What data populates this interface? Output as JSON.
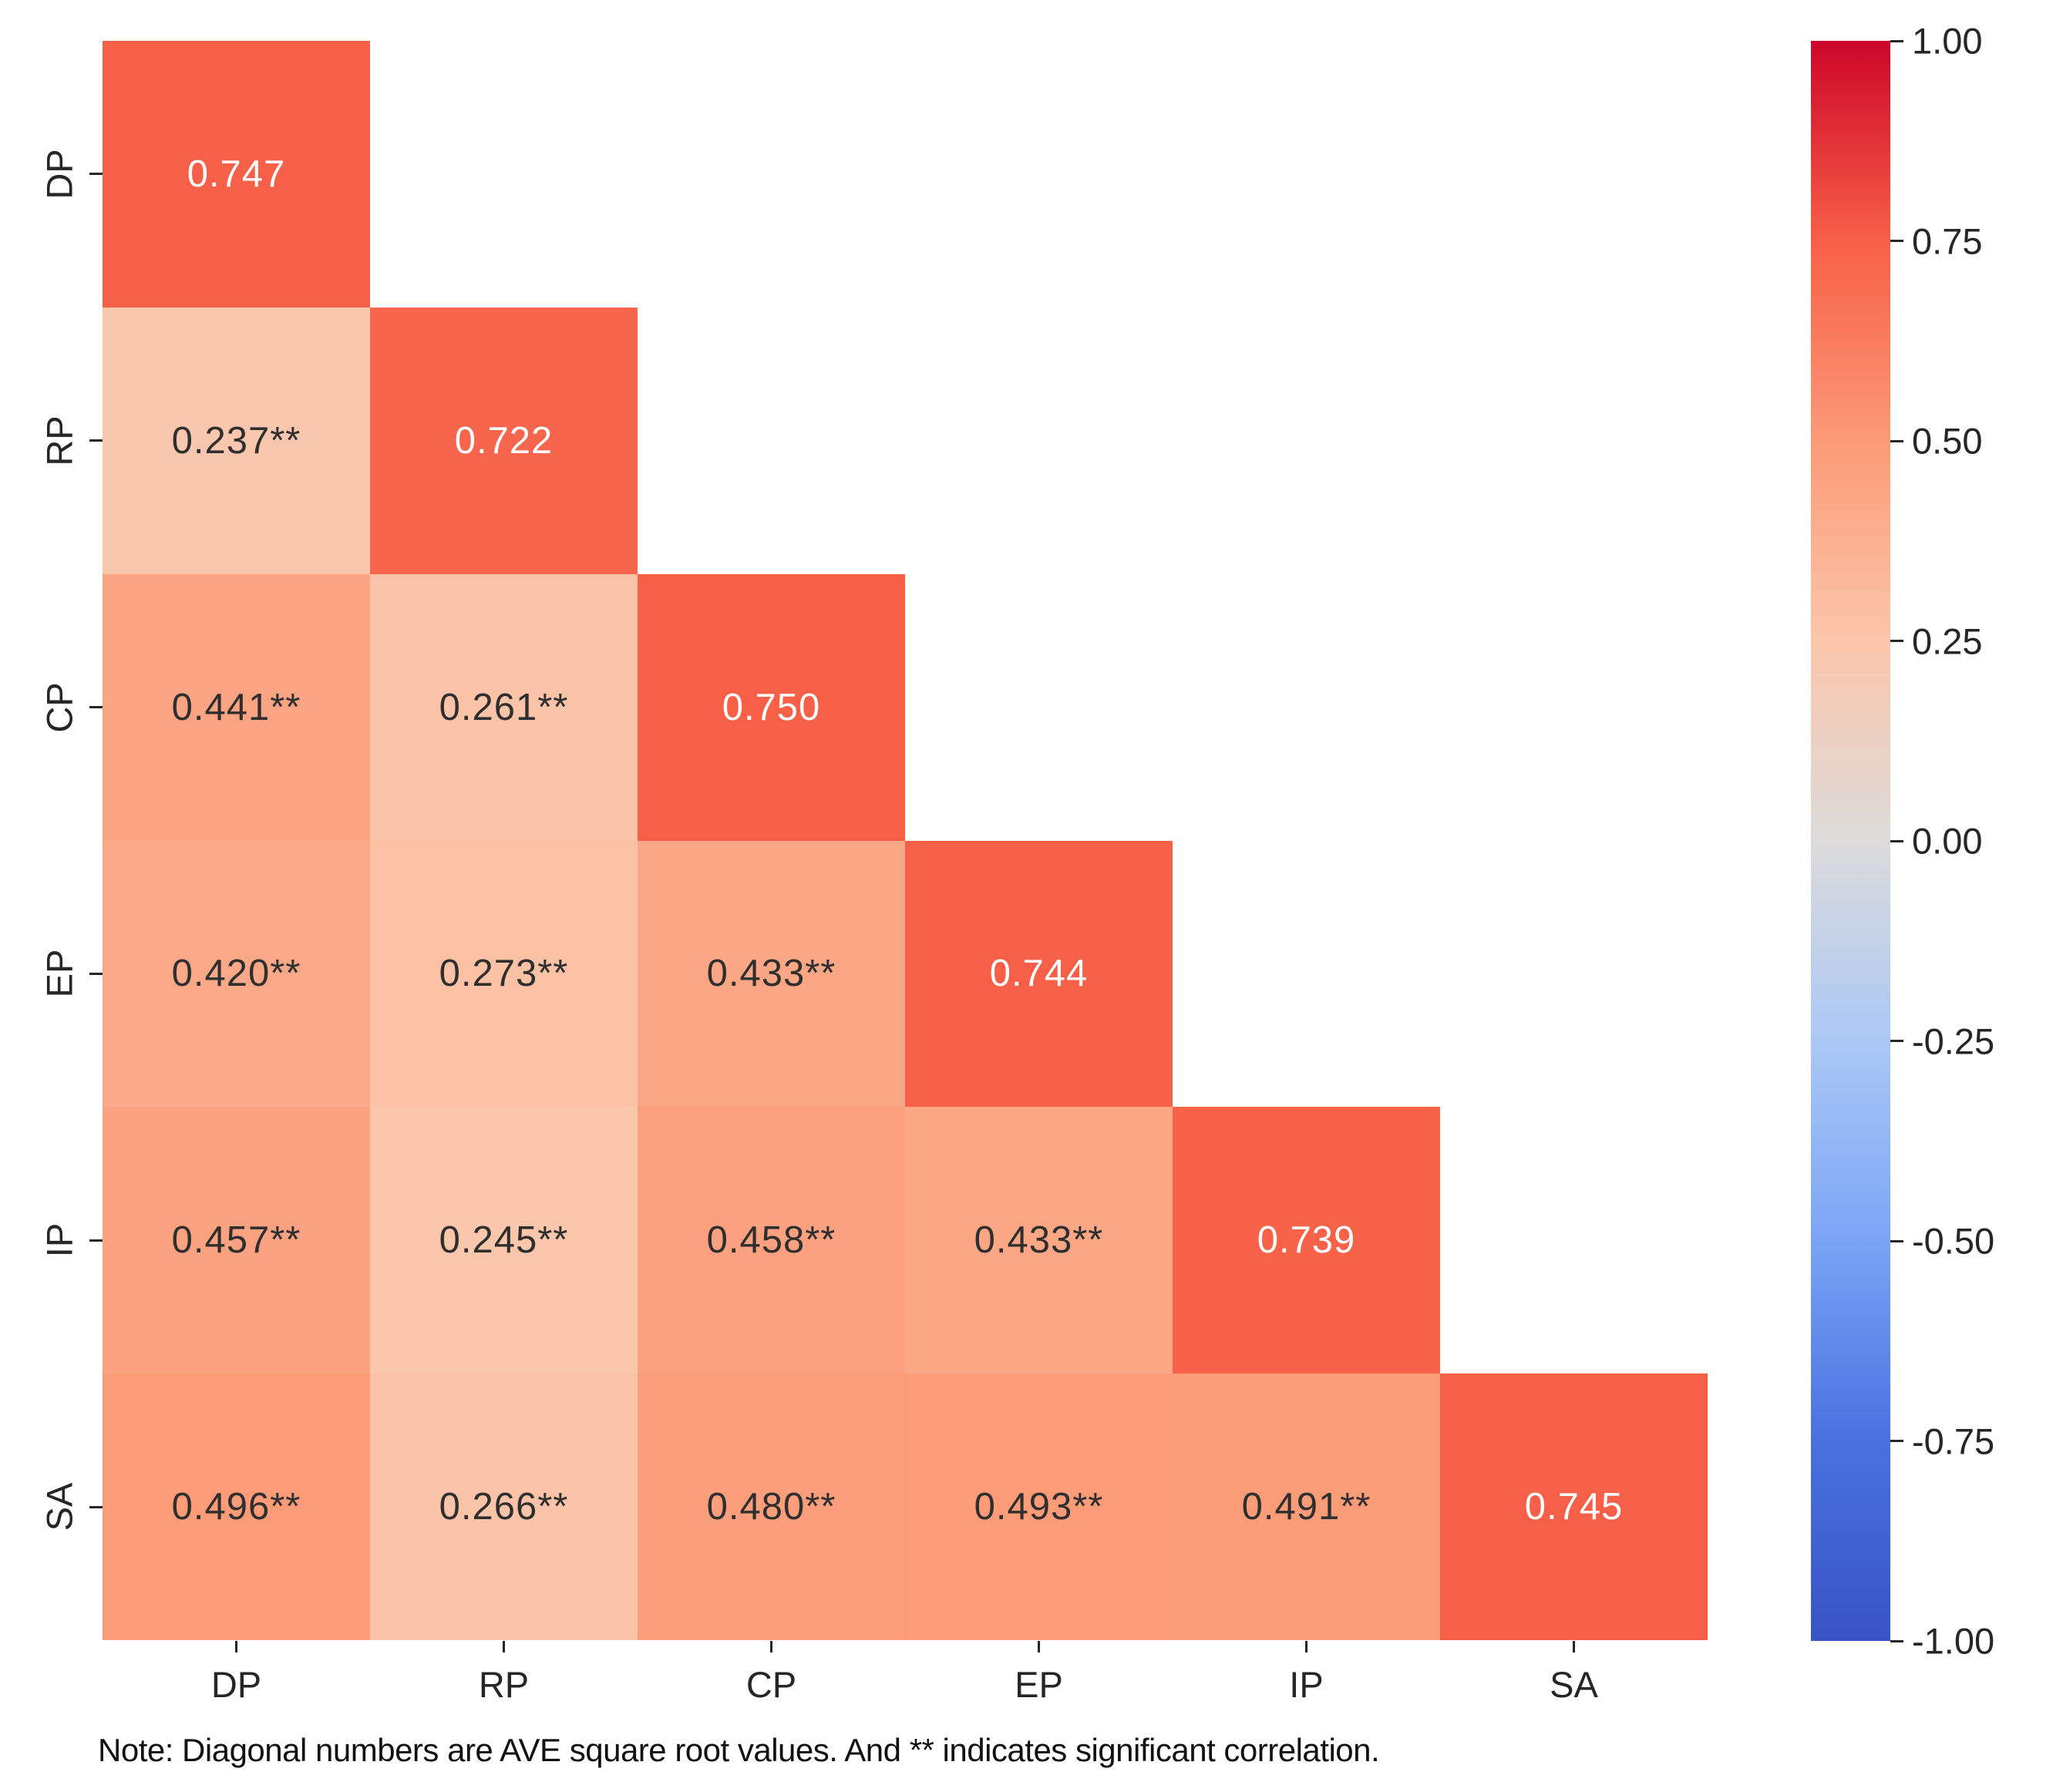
{
  "chart_data": {
    "type": "heatmap",
    "title": "",
    "x_categories": [
      "DP",
      "RP",
      "CP",
      "EP",
      "IP",
      "SA"
    ],
    "y_categories": [
      "DP",
      "RP",
      "CP",
      "EP",
      "IP",
      "SA"
    ],
    "rows": [
      {
        "name": "DP",
        "values": [
          0.747
        ]
      },
      {
        "name": "RP",
        "values": [
          0.237,
          0.722
        ]
      },
      {
        "name": "CP",
        "values": [
          0.441,
          0.261,
          0.75
        ]
      },
      {
        "name": "EP",
        "values": [
          0.42,
          0.273,
          0.433,
          0.744
        ]
      },
      {
        "name": "IP",
        "values": [
          0.457,
          0.245,
          0.458,
          0.433,
          0.739
        ]
      },
      {
        "name": "SA",
        "values": [
          0.496,
          0.266,
          0.48,
          0.493,
          0.491,
          0.745
        ]
      }
    ],
    "labels": [
      [
        "0.747"
      ],
      [
        "0.237**",
        "0.722"
      ],
      [
        "0.441**",
        "0.261**",
        "0.750"
      ],
      [
        "0.420**",
        "0.273**",
        "0.433**",
        "0.744"
      ],
      [
        "0.457**",
        "0.245**",
        "0.458**",
        "0.433**",
        "0.739"
      ],
      [
        "0.496**",
        "0.266**",
        "0.480**",
        "0.493**",
        "0.491**",
        "0.745"
      ]
    ],
    "shape": "lower-triangle",
    "value_range": [
      -1,
      1
    ],
    "grid": false,
    "colormap": {
      "name": "coolwarm",
      "stops": [
        {
          "v": -1.0,
          "color": "#3853c6"
        },
        {
          "v": -0.75,
          "color": "#4a70e0"
        },
        {
          "v": -0.5,
          "color": "#7ba4f5"
        },
        {
          "v": -0.25,
          "color": "#abc8f5"
        },
        {
          "v": 0.0,
          "color": "#dcdbda"
        },
        {
          "v": 0.25,
          "color": "#fbc6ab"
        },
        {
          "v": 0.5,
          "color": "#fb9a77"
        },
        {
          "v": 0.75,
          "color": "#f75f47"
        },
        {
          "v": 1.0,
          "color": "#cc0629"
        }
      ]
    },
    "annotation_colors": {
      "diagonal": "#ffffff",
      "off_diagonal": "#2f2f2f"
    },
    "axis_tick_color": "#262626",
    "colorbar": {
      "position": "right",
      "tick_labels": [
        "1.00",
        "0.75",
        "0.50",
        "0.25",
        "0.00",
        "-0.25",
        "-0.50",
        "-0.75",
        "-1.00"
      ]
    },
    "note": "Note: Diagonal numbers are AVE square root values. And ** indicates significant correlation."
  }
}
